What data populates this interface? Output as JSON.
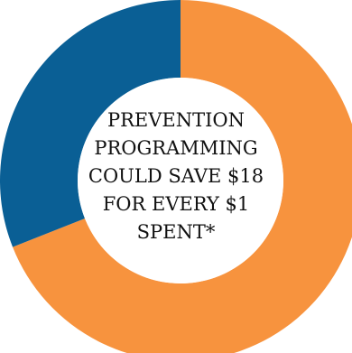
{
  "chart_data": {
    "type": "pie",
    "style": "donut",
    "series": [
      {
        "values": [
          69,
          31
        ]
      }
    ],
    "colors": [
      "#F7933E",
      "#0A5F95"
    ],
    "center_label": [
      "PREVENTION",
      "PROGRAMMING",
      "COULD SAVE $18",
      "FOR EVERY $1",
      "SPENT*"
    ],
    "background": "#FFFFFF",
    "center_color": "#FFFFFF"
  }
}
